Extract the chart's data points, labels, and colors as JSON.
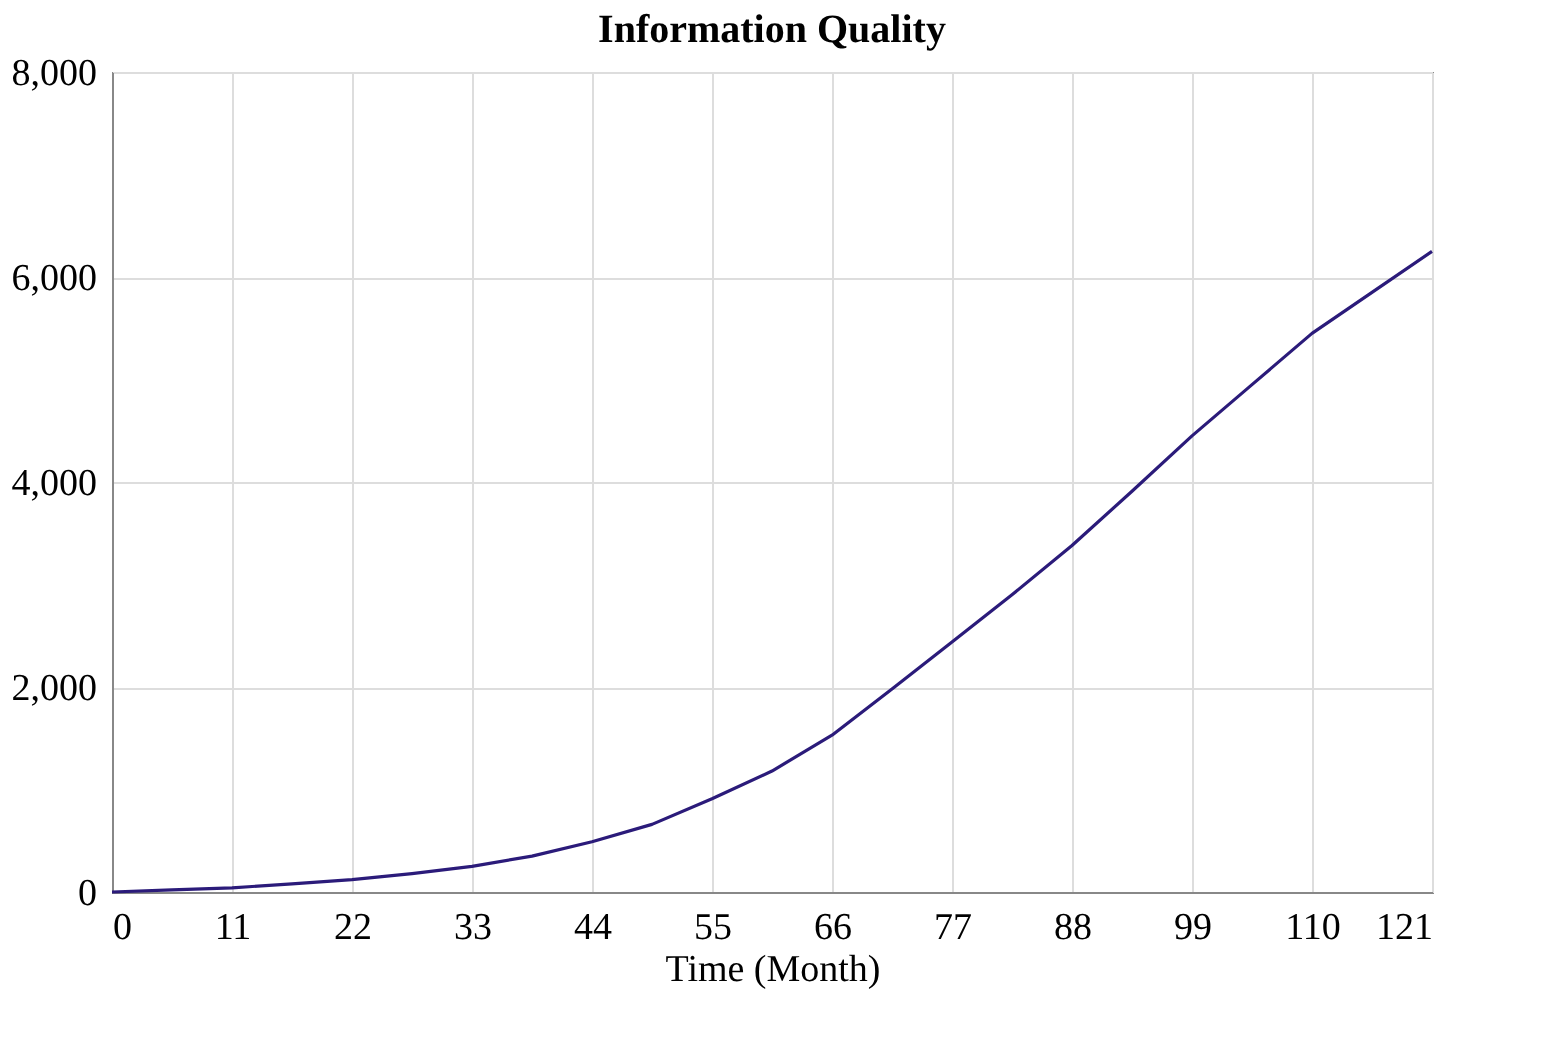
{
  "chart_data": {
    "type": "line",
    "title": "Information Quality",
    "xlabel": "Time (Month)",
    "x": [
      0,
      5.5,
      11,
      16.5,
      22,
      27.5,
      33,
      38.5,
      44,
      49.5,
      55,
      60.5,
      66,
      71.5,
      77,
      82.5,
      88,
      93.5,
      99,
      104.5,
      110,
      115.5,
      121
    ],
    "series": [
      {
        "color": "#2b1b7a",
        "values": [
          0,
          20,
          40,
          80,
          120,
          180,
          250,
          350,
          490,
          660,
          910,
          1180,
          1530,
          1980,
          2440,
          2900,
          3380,
          3910,
          4450,
          4950,
          5450,
          5850,
          6250
        ]
      }
    ],
    "xlim": [
      0,
      121
    ],
    "xticks": [
      0,
      11,
      22,
      33,
      44,
      55,
      66,
      77,
      88,
      99,
      110,
      121
    ],
    "ylim": [
      0,
      8000
    ],
    "yticks": [
      0,
      {
        "value": 2000,
        "label": "2,000"
      },
      {
        "value": 4000,
        "label": "4,000"
      },
      {
        "value": 6000,
        "label": "6,000"
      },
      {
        "value": 8000,
        "label": "8,000"
      }
    ],
    "grid": true,
    "legend": false,
    "marker": "none",
    "line_style": "solid"
  }
}
